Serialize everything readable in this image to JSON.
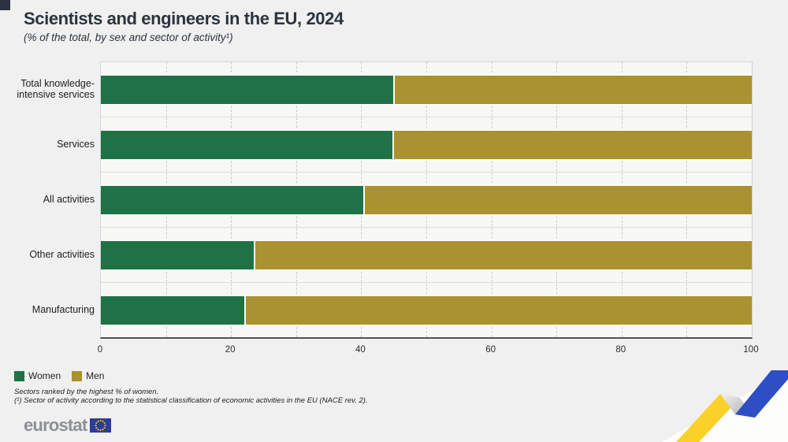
{
  "header": {
    "title": "Scientists and engineers in the EU, 2024",
    "subtitle": "(% of the total, by sex and sector of activity¹)"
  },
  "chart_data": {
    "type": "bar",
    "orientation": "horizontal",
    "stacked": true,
    "unit": "% of the total",
    "categories": [
      "Total knowledge-intensive services",
      "Services",
      "All activities",
      "Other activities",
      "Manufacturing"
    ],
    "series": [
      {
        "name": "Women",
        "color": "#1f7245",
        "values": [
          45.1,
          45.0,
          40.6,
          23.7,
          22.3
        ]
      },
      {
        "name": "Men",
        "color": "#ab9230",
        "values": [
          54.9,
          55.0,
          59.4,
          76.3,
          77.7
        ]
      }
    ],
    "xlim": [
      0,
      100
    ],
    "x_ticks": [
      0,
      20,
      40,
      60,
      80,
      100
    ],
    "grid_step": 10,
    "grid_style": "dashed",
    "legend_position": "bottom-left",
    "sort_note": "Sectors ranked by the highest % of women."
  },
  "legend": {
    "items": [
      {
        "label": "Women",
        "color": "#1f7245"
      },
      {
        "label": "Men",
        "color": "#ab9230"
      }
    ]
  },
  "footnotes": [
    "Sectors ranked by the highest % of women.",
    "(¹) Sector of activity according to the statistical classification of economic activities in the EU (NACE rev. 2)."
  ],
  "branding": {
    "logo_text": "eurostat",
    "flag_blue": "#2e3c99",
    "star_yellow": "#ffcc00",
    "ribbon_yellow": "#fad029",
    "ribbon_blue": "#2e4ec4"
  }
}
